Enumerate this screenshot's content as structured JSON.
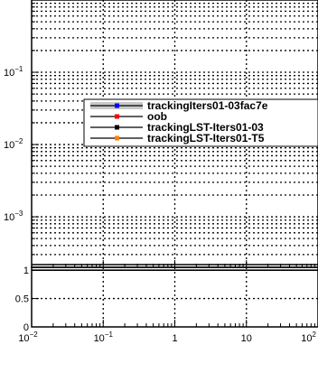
{
  "chart_data": [
    {
      "type": "line",
      "panel": "ratio-top",
      "x_scale": "log",
      "y_scale": "log",
      "xlim": [
        0.01,
        100
      ],
      "ylim": [
        0.0002,
        1
      ],
      "grid": true,
      "yticks": [
        {
          "value": 0.1,
          "label": "10",
          "exp": "−1"
        },
        {
          "value": 0.01,
          "label": "10",
          "exp": "−2"
        },
        {
          "value": 0.001,
          "label": "10",
          "exp": "−3"
        }
      ],
      "legend": {
        "placement": "center-right",
        "entries": [
          {
            "label": "trackingIters01-03fac7e",
            "color": "#0000ff",
            "band": "#c8c8c8"
          },
          {
            "label": "oob",
            "color": "#ff0000"
          },
          {
            "label": "trackingLST-Iters01-03",
            "color": "#000000"
          },
          {
            "label": "trackingLST-Iters01-T5",
            "color": "#ff8000"
          }
        ]
      },
      "series": []
    },
    {
      "type": "line",
      "panel": "ratio-bottom",
      "x_scale": "log",
      "xlim": [
        0.01,
        100
      ],
      "ylim": [
        0,
        1.05
      ],
      "grid": true,
      "xticks": [
        {
          "value": 0.01,
          "label": "10",
          "exp": "−2"
        },
        {
          "value": 0.1,
          "label": "10",
          "exp": "−1"
        },
        {
          "value": 1,
          "label": "1",
          "exp": ""
        },
        {
          "value": 10,
          "label": "10",
          "exp": ""
        },
        {
          "value": 100,
          "label": "10",
          "exp": "2"
        }
      ],
      "yticks": [
        {
          "value": 1,
          "label": "1"
        },
        {
          "value": 0.5,
          "label": "0.5"
        },
        {
          "value": 0,
          "label": "0"
        }
      ],
      "series": [
        {
          "color": "#000000",
          "x": [
            0.01,
            100
          ],
          "y": [
            1,
            1
          ]
        }
      ]
    }
  ]
}
